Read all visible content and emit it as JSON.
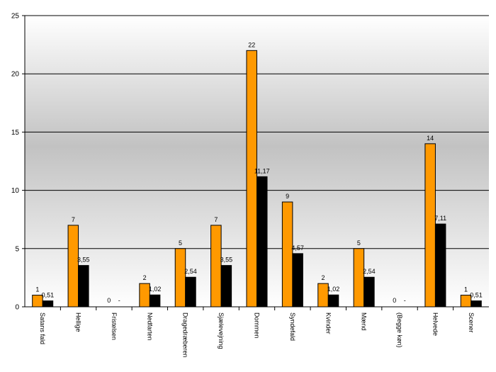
{
  "chart_data": {
    "type": "bar",
    "title": "",
    "xlabel": "",
    "ylabel": "",
    "ylim": [
      0,
      25
    ],
    "yticks": [
      0,
      5,
      10,
      15,
      20,
      25
    ],
    "grid": true,
    "legend": "none",
    "categories": [
      "Satans fald",
      "Hellige",
      "Fristelsen",
      "Nedfarten",
      "Dragedræberen",
      "Sjælevejning",
      "Dommen",
      "Syndefald",
      "Kvinder",
      "Mænd",
      "(Begge køn)",
      "Helvede",
      "Scener"
    ],
    "series": [
      {
        "color": "#ff9900",
        "values": [
          1,
          7,
          0,
          2,
          5,
          7,
          22,
          9,
          2,
          5,
          0,
          14,
          1
        ],
        "labels": [
          "1",
          "7",
          "0",
          "2",
          "5",
          "7",
          "22",
          "9",
          "2",
          "5",
          "0",
          "14",
          "1"
        ]
      },
      {
        "color": "#000000",
        "values": [
          0.51,
          3.55,
          null,
          1.02,
          2.54,
          3.55,
          11.17,
          4.57,
          1.02,
          2.54,
          null,
          7.11,
          0.51
        ],
        "labels": [
          "0,51",
          "3,55",
          "-",
          "1,02",
          "2,54",
          "3,55",
          "11,17",
          "4,57",
          "1,02",
          "2,54",
          "-",
          "7,11",
          "0,51"
        ]
      }
    ]
  }
}
